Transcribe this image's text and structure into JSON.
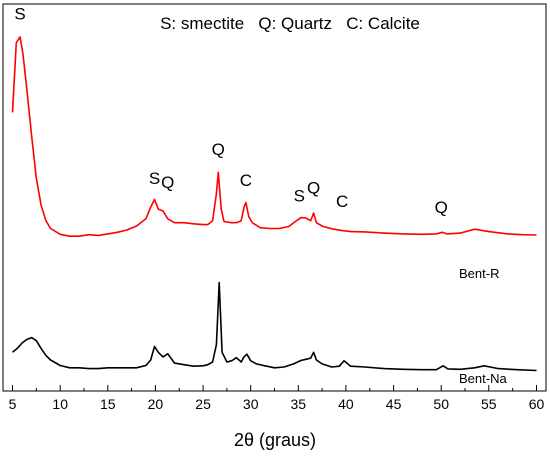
{
  "chart_data": {
    "type": "line",
    "title": "S: smectite   Q: Quartz   C: Calcite",
    "xlabel": "2θ (graus)",
    "ylabel": "",
    "xlim": [
      4,
      61
    ],
    "ylim": [
      0,
      100
    ],
    "x_ticks": [
      "5",
      "10",
      "15",
      "20",
      "25",
      "30",
      "35",
      "40",
      "45",
      "50",
      "55",
      "60"
    ],
    "grid": false,
    "legend": "none",
    "series": [
      {
        "name": "Bent-R",
        "color": "#ff0000",
        "x": [
          5.0,
          5.4,
          5.8,
          6.1,
          6.5,
          7.0,
          7.5,
          8.0,
          8.5,
          9.0,
          10.0,
          11.0,
          12.0,
          13.0,
          14.0,
          15.0,
          16.0,
          17.0,
          18.0,
          19.0,
          19.5,
          19.9,
          20.3,
          20.8,
          21.3,
          22.0,
          23.0,
          24.0,
          25.0,
          25.5,
          26.0,
          26.4,
          26.6,
          26.9,
          27.2,
          28.0,
          28.5,
          29.0,
          29.3,
          29.5,
          29.8,
          30.2,
          31.0,
          32.0,
          33.0,
          34.0,
          34.8,
          35.3,
          35.8,
          36.3,
          36.6,
          36.9,
          37.5,
          38.5,
          39.5,
          40.5,
          42.0,
          44.0,
          46.0,
          48.0,
          49.5,
          50.1,
          50.6,
          52.0,
          53.5,
          55.0,
          57.0,
          58.5,
          60.0
        ],
        "y": [
          72,
          90,
          91.5,
          87,
          78,
          66,
          55,
          48,
          44,
          42,
          40.5,
          40,
          40,
          40.4,
          40.2,
          40.6,
          41,
          41.6,
          42.6,
          44.5,
          47.5,
          49.5,
          47,
          46.5,
          44.5,
          43.5,
          43.5,
          43.2,
          43,
          43,
          44,
          51,
          56.5,
          47,
          43.8,
          43.5,
          43.5,
          44,
          47.5,
          48.7,
          45,
          43.4,
          42.2,
          42,
          42,
          42.5,
          44,
          44.8,
          44.7,
          44,
          46,
          43.5,
          42.6,
          41.9,
          41.5,
          41.2,
          41.1,
          40.8,
          40.6,
          40.5,
          40.6,
          41,
          40.6,
          40.8,
          41.8,
          41.2,
          40.6,
          40.4,
          40.3
        ]
      },
      {
        "name": "Bent-Na",
        "color": "#000000",
        "x": [
          5.0,
          5.5,
          6.0,
          6.5,
          7.0,
          7.5,
          8.0,
          8.5,
          9.0,
          10.0,
          11.0,
          12.0,
          13.0,
          14.0,
          15.0,
          16.0,
          17.0,
          18.0,
          19.0,
          19.5,
          19.9,
          20.3,
          20.8,
          21.3,
          22.0,
          23.0,
          24.0,
          25.0,
          25.5,
          26.0,
          26.4,
          26.7,
          27.0,
          27.5,
          28.0,
          28.5,
          29.0,
          29.3,
          29.6,
          30.0,
          30.6,
          31.5,
          32.5,
          33.5,
          34.5,
          35.3,
          35.8,
          36.3,
          36.6,
          36.9,
          37.5,
          38.5,
          39.3,
          39.8,
          40.5,
          42.0,
          44.0,
          46.0,
          48.0,
          49.5,
          50.2,
          50.7,
          52.0,
          53.5,
          54.5,
          56.0,
          58.0,
          60.0
        ],
        "y": [
          10,
          11,
          12.4,
          13.3,
          13.8,
          13,
          11,
          9.2,
          8,
          6.6,
          6,
          6,
          5.8,
          5.8,
          6,
          6,
          6,
          6,
          6.6,
          8,
          11.5,
          10,
          8.8,
          9.6,
          7.2,
          6.8,
          6.4,
          6.5,
          6.8,
          7.5,
          12,
          28,
          10,
          7.5,
          7.8,
          8.6,
          7.5,
          8.8,
          9.5,
          7.8,
          7,
          6.5,
          6,
          6.2,
          7,
          7.9,
          8.2,
          8.5,
          10,
          8,
          7,
          6.2,
          6.4,
          7.8,
          6.4,
          6.2,
          5.8,
          5.6,
          5.5,
          5.5,
          6.5,
          5.7,
          5.6,
          6,
          6.5,
          5.8,
          5.5,
          5.3
        ]
      }
    ],
    "annotations": [
      {
        "text": "S",
        "x": 5.8,
        "y": 96
      },
      {
        "text": "S",
        "x": 19.9,
        "y": 53.5
      },
      {
        "text": "Q",
        "x": 21.3,
        "y": 52.5
      },
      {
        "text": "Q",
        "x": 26.6,
        "y": 61
      },
      {
        "text": "C",
        "x": 29.5,
        "y": 53
      },
      {
        "text": "S",
        "x": 35.1,
        "y": 49
      },
      {
        "text": "Q",
        "x": 36.6,
        "y": 51
      },
      {
        "text": "C",
        "x": 39.6,
        "y": 47.5
      },
      {
        "text": "Q",
        "x": 50.0,
        "y": 46
      }
    ]
  }
}
